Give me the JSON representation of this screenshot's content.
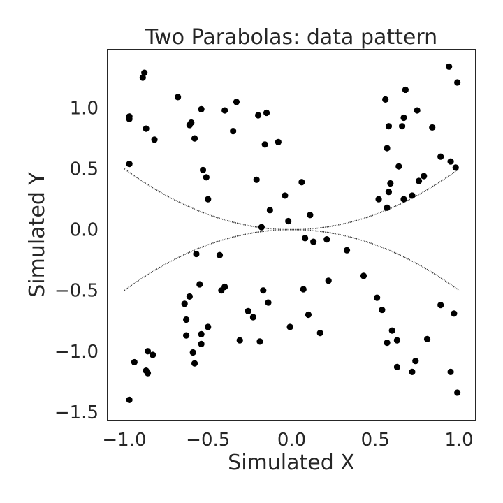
{
  "chart_data": {
    "type": "scatter",
    "title": "Two Parabolas: data pattern",
    "xlabel": "Simulated X",
    "ylabel": "Simulated Y",
    "xlim": [
      -1.1,
      1.1
    ],
    "ylim": [
      -1.57,
      1.48
    ],
    "x_ticks": [
      -1.0,
      -0.5,
      0.0,
      0.5,
      1.0
    ],
    "x_tick_labels": [
      "−1.0",
      "−0.5",
      "0.0",
      "0.5",
      "1.0"
    ],
    "y_ticks": [
      -1.5,
      -1.0,
      -0.5,
      0.0,
      0.5,
      1.0
    ],
    "y_tick_labels": [
      "−1.5",
      "−1.0",
      "−0.5",
      "0.0",
      "0.5",
      "1.0"
    ],
    "grid": false,
    "colors": {
      "points": "#000000",
      "curves": "#3a3a3a",
      "axes": "#262626"
    },
    "curves": [
      {
        "equation": "y = 0.5 x^2",
        "x_range": [
          -1.0,
          1.0
        ]
      },
      {
        "equation": "y = -0.5 x^2",
        "x_range": [
          -1.0,
          1.0
        ]
      }
    ],
    "points": [
      [
        -0.97,
        0.93
      ],
      [
        -0.97,
        0.91
      ],
      [
        -0.97,
        0.54
      ],
      [
        -0.89,
        1.25
      ],
      [
        -0.88,
        1.29
      ],
      [
        -0.87,
        0.83
      ],
      [
        -0.82,
        0.74
      ],
      [
        -0.68,
        1.09
      ],
      [
        -0.61,
        0.86
      ],
      [
        -0.6,
        0.88
      ],
      [
        -0.58,
        0.75
      ],
      [
        -0.54,
        0.99
      ],
      [
        -0.53,
        0.49
      ],
      [
        -0.51,
        0.43
      ],
      [
        -0.5,
        0.25
      ],
      [
        -0.4,
        0.98
      ],
      [
        -0.35,
        0.81
      ],
      [
        -0.33,
        1.05
      ],
      [
        -0.21,
        0.41
      ],
      [
        -0.2,
        0.94
      ],
      [
        -0.16,
        0.7
      ],
      [
        -0.15,
        0.96
      ],
      [
        -0.08,
        0.72
      ],
      [
        -0.04,
        0.28
      ],
      [
        -0.02,
        0.07
      ],
      [
        -0.18,
        0.02
      ],
      [
        -0.13,
        0.16
      ],
      [
        0.06,
        0.39
      ],
      [
        0.08,
        -0.07
      ],
      [
        0.11,
        0.12
      ],
      [
        0.13,
        -0.1
      ],
      [
        0.94,
        1.34
      ],
      [
        0.99,
        1.21
      ],
      [
        0.56,
        1.07
      ],
      [
        0.68,
        1.15
      ],
      [
        0.75,
        0.98
      ],
      [
        0.67,
        0.92
      ],
      [
        0.58,
        0.85
      ],
      [
        0.66,
        0.85
      ],
      [
        0.84,
        0.84
      ],
      [
        0.57,
        0.67
      ],
      [
        0.89,
        0.6
      ],
      [
        0.95,
        0.56
      ],
      [
        0.98,
        0.51
      ],
      [
        0.64,
        0.52
      ],
      [
        0.79,
        0.44
      ],
      [
        0.59,
        0.38
      ],
      [
        0.76,
        0.4
      ],
      [
        0.58,
        0.31
      ],
      [
        0.72,
        0.28
      ],
      [
        0.52,
        0.25
      ],
      [
        0.67,
        0.25
      ],
      [
        0.57,
        0.18
      ],
      [
        -0.97,
        -1.4
      ],
      [
        -0.94,
        -1.09
      ],
      [
        -0.87,
        -1.16
      ],
      [
        -0.86,
        -1.18
      ],
      [
        -0.86,
        -1.0
      ],
      [
        -0.83,
        -1.03
      ],
      [
        -0.64,
        -0.61
      ],
      [
        -0.63,
        -0.74
      ],
      [
        -0.63,
        -0.87
      ],
      [
        -0.61,
        -0.55
      ],
      [
        -0.59,
        -1.01
      ],
      [
        -0.58,
        -1.1
      ],
      [
        -0.57,
        -0.2
      ],
      [
        -0.55,
        -0.45
      ],
      [
        -0.54,
        -0.86
      ],
      [
        -0.54,
        -0.94
      ],
      [
        -0.5,
        -0.8
      ],
      [
        -0.43,
        -0.21
      ],
      [
        -0.42,
        -0.5
      ],
      [
        -0.4,
        -0.47
      ],
      [
        -0.31,
        -0.91
      ],
      [
        -0.26,
        -0.67
      ],
      [
        -0.23,
        -0.72
      ],
      [
        -0.19,
        -0.92
      ],
      [
        -0.17,
        -0.5
      ],
      [
        -0.14,
        -0.6
      ],
      [
        -0.01,
        -0.8
      ],
      [
        0.07,
        -0.49
      ],
      [
        0.1,
        -0.7
      ],
      [
        0.17,
        -0.85
      ],
      [
        0.22,
        -0.42
      ],
      [
        0.21,
        -0.08
      ],
      [
        0.33,
        -0.17
      ],
      [
        0.43,
        -0.38
      ],
      [
        0.51,
        -0.56
      ],
      [
        0.54,
        -0.66
      ],
      [
        0.57,
        -0.93
      ],
      [
        0.6,
        -0.83
      ],
      [
        0.63,
        -0.91
      ],
      [
        0.63,
        -1.13
      ],
      [
        0.72,
        -1.17
      ],
      [
        0.74,
        -1.08
      ],
      [
        0.81,
        -0.9
      ],
      [
        0.89,
        -0.62
      ],
      [
        0.95,
        -1.17
      ],
      [
        0.97,
        -0.69
      ],
      [
        0.99,
        -1.34
      ]
    ]
  }
}
